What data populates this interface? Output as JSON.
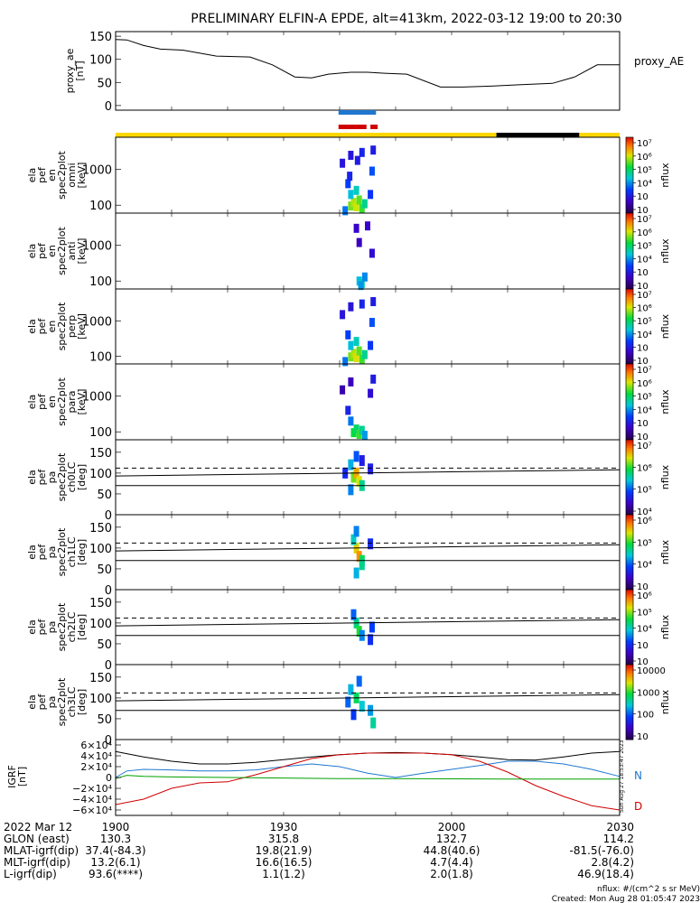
{
  "title": "PRELIMINARY ELFIN-A EPDE, alt=413km, 2022-03-12 19:00 to 20:30",
  "footer": {
    "units": "nflux: #/(cm^2 s sr MeV)",
    "created": "Created: Mon Aug 28 01:05:47 2023"
  },
  "side_stamp": "Sun Aug 27 18:53:47 2023",
  "colors": {
    "dashed": "#000",
    "blue": "#1f77d0",
    "red": "#d00000",
    "green": "#00a000",
    "black": "#000000",
    "bar_yellow": "#ffd700"
  },
  "chart_data": [
    {
      "panel": "proxy_ae",
      "type": "line",
      "ylabel": [
        "proxy_ae",
        "[nT]"
      ],
      "legend": "proxy_AE",
      "yticks": [
        0,
        50,
        100,
        150
      ],
      "ylim": [
        -10,
        160
      ],
      "xlim": [
        0,
        90
      ],
      "series": [
        {
          "name": "proxy_AE",
          "x": [
            0,
            2,
            5,
            8,
            12,
            18,
            24,
            28,
            32,
            35,
            38,
            42,
            45,
            48,
            52,
            58,
            62,
            67,
            72,
            78,
            82,
            86,
            88,
            90
          ],
          "y": [
            143,
            142,
            130,
            122,
            120,
            107,
            105,
            88,
            62,
            60,
            68,
            72,
            72,
            70,
            68,
            40,
            40,
            42,
            45,
            48,
            62,
            88,
            88,
            88
          ]
        }
      ]
    },
    {
      "panel": "status_bars",
      "type": "bar",
      "bars": [
        {
          "name": "science_blue",
          "x0": 39.8,
          "x1": 46.5,
          "color": "#1f77d0"
        },
        {
          "name": "science_red_1",
          "x0": 39.8,
          "x1": 44.8,
          "color": "#d00000"
        },
        {
          "name": "science_red_2",
          "x0": 45.5,
          "x1": 46.8,
          "color": "#d00000"
        },
        {
          "name": "eclipse_yellow_1",
          "x0": 0,
          "x1": 68.0,
          "color": "#ffd700"
        },
        {
          "name": "eclipse_black",
          "x0": 68.0,
          "x1": 82.8,
          "color": "#000000"
        },
        {
          "name": "eclipse_yellow_2",
          "x0": 82.8,
          "x1": 90,
          "color": "#ffd700"
        }
      ]
    },
    {
      "panel": "spec_omni",
      "type": "heatmap",
      "ylabel": [
        "ela",
        "pef",
        "en",
        "spec2plot",
        "omni",
        "[keV]"
      ],
      "ytick_labels": [
        "1000",
        "100"
      ],
      "ytick_values": [
        1000,
        100
      ],
      "ylog": true,
      "ylim": [
        60,
        8000
      ],
      "zlabel": "nflux",
      "zticks": [
        "10⁷",
        "10⁶",
        "10⁵",
        "10⁴",
        "10⁳",
        "10⁲"
      ],
      "zlim": [
        2,
        7
      ],
      "cells": [
        [
          42,
          95,
          5.4
        ],
        [
          42.5,
          120,
          5.6
        ],
        [
          43,
          90,
          5.7
        ],
        [
          43.5,
          140,
          5.3
        ],
        [
          42,
          200,
          4.2
        ],
        [
          43,
          260,
          4.4
        ],
        [
          41.5,
          400,
          3.5
        ],
        [
          44,
          80,
          5.2
        ],
        [
          41,
          70,
          3.8
        ],
        [
          44.5,
          110,
          4.6
        ],
        [
          40.5,
          1500,
          3
        ],
        [
          42,
          2500,
          3
        ],
        [
          44,
          3000,
          3.2
        ],
        [
          45.8,
          900,
          3.6
        ],
        [
          46,
          3500,
          3.1
        ],
        [
          45.5,
          200,
          3.4
        ],
        [
          41.8,
          650,
          3.2
        ],
        [
          43.2,
          1800,
          3.1
        ]
      ]
    },
    {
      "panel": "spec_anti",
      "type": "heatmap",
      "ylabel": [
        "ela",
        "pef",
        "en",
        "spec2plot",
        "anti",
        "[keV]"
      ],
      "ytick_labels": [
        "1000",
        "100"
      ],
      "ytick_values": [
        1000,
        100
      ],
      "ylog": true,
      "ylim": [
        60,
        8000
      ],
      "zlabel": "nflux",
      "zticks": [
        "10⁷",
        "10⁶",
        "10⁵",
        "10⁴",
        "10⁳",
        "10⁲"
      ],
      "zlim": [
        2,
        7
      ],
      "cells": [
        [
          43.5,
          100,
          4.2
        ],
        [
          44,
          85,
          4.5
        ],
        [
          44.5,
          130,
          3.9
        ],
        [
          43.8,
          75,
          4.0
        ],
        [
          43,
          3000,
          2.8
        ],
        [
          45,
          3500,
          2.8
        ],
        [
          43.5,
          1200,
          2.7
        ],
        [
          45.8,
          600,
          2.9
        ]
      ]
    },
    {
      "panel": "spec_perp",
      "type": "heatmap",
      "ylabel": [
        "ela",
        "pef",
        "en",
        "spec2plot",
        "perp",
        "[keV]"
      ],
      "ytick_labels": [
        "1000",
        "100"
      ],
      "ytick_values": [
        1000,
        100
      ],
      "ylog": true,
      "ylim": [
        60,
        8000
      ],
      "zlabel": "nflux",
      "zticks": [
        "10⁷",
        "10⁶",
        "10⁵",
        "10⁴",
        "10⁳",
        "10⁲"
      ],
      "zlim": [
        2,
        7
      ],
      "cells": [
        [
          42,
          95,
          5.4
        ],
        [
          42.5,
          120,
          5.6
        ],
        [
          43,
          90,
          5.8
        ],
        [
          43.5,
          140,
          5.3
        ],
        [
          42,
          200,
          4.2
        ],
        [
          43,
          260,
          4.4
        ],
        [
          41.5,
          400,
          3.5
        ],
        [
          44,
          80,
          5.2
        ],
        [
          41,
          70,
          3.8
        ],
        [
          44.5,
          110,
          4.6
        ],
        [
          40.5,
          1500,
          3
        ],
        [
          42,
          2500,
          3
        ],
        [
          44,
          3000,
          3.2
        ],
        [
          45.8,
          900,
          3.6
        ],
        [
          46,
          3500,
          3.1
        ],
        [
          45.5,
          200,
          3.4
        ]
      ]
    },
    {
      "panel": "spec_para",
      "type": "heatmap",
      "ylabel": [
        "ela",
        "pef",
        "en",
        "spec2plot",
        "para",
        "[keV]"
      ],
      "ytick_labels": [
        "1000",
        "100"
      ],
      "ytick_values": [
        1000,
        100
      ],
      "ylog": true,
      "ylim": [
        60,
        8000
      ],
      "zlabel": "nflux",
      "zticks": [
        "10⁷",
        "10⁶",
        "10⁵",
        "10⁴",
        "10⁳",
        "10⁲"
      ],
      "zlim": [
        2,
        7
      ],
      "cells": [
        [
          42.5,
          95,
          5.0
        ],
        [
          43,
          120,
          4.8
        ],
        [
          43.5,
          85,
          5.2
        ],
        [
          44,
          110,
          4.6
        ],
        [
          42,
          200,
          3.8
        ],
        [
          41.5,
          400,
          3.2
        ],
        [
          44.5,
          80,
          4.0
        ],
        [
          46,
          3000,
          3.1
        ],
        [
          45.5,
          1200,
          2.9
        ],
        [
          42,
          2500,
          2.7
        ],
        [
          40.5,
          1500,
          2.6
        ]
      ]
    },
    {
      "panel": "pa_ch0",
      "type": "heatmap",
      "ylabel": [
        "ela",
        "pef",
        "pa",
        "spec2plot",
        "ch0LC",
        "[deg]"
      ],
      "yticks": [
        0,
        50,
        100,
        150
      ],
      "ylim": [
        0,
        180
      ],
      "zlabel": "nflux",
      "zticks": [
        "10⁷",
        "10⁶",
        "10⁵",
        "10⁴"
      ],
      "zlim": [
        3.5,
        7.5
      ],
      "lines": {
        "dashed_y0": 112,
        "dashed_y1": 112,
        "upper_y0": 93,
        "upper_y1": 108,
        "lower_y0": 70,
        "lower_y1": 70
      },
      "cells": [
        [
          42.5,
          90,
          6.2
        ],
        [
          43,
          100,
          6.8
        ],
        [
          43.5,
          80,
          6.5
        ],
        [
          42,
          120,
          5.2
        ],
        [
          44,
          70,
          5.6
        ],
        [
          41,
          100,
          4.5
        ],
        [
          45.5,
          110,
          4.4
        ],
        [
          43,
          140,
          4.8
        ],
        [
          42,
          60,
          5.0
        ],
        [
          44,
          130,
          4.4
        ]
      ]
    },
    {
      "panel": "pa_ch1",
      "type": "heatmap",
      "ylabel": [
        "ela",
        "pef",
        "pa",
        "spec2plot",
        "ch1LC",
        "[deg]"
      ],
      "yticks": [
        0,
        50,
        100,
        150
      ],
      "ylim": [
        0,
        180
      ],
      "zlabel": "nflux",
      "zticks": [
        "10⁶",
        "10⁵",
        "10⁴",
        "10⁳"
      ],
      "zlim": [
        2.5,
        6.5
      ],
      "lines": {
        "dashed_y0": 112,
        "dashed_y1": 112,
        "upper_y0": 93,
        "upper_y1": 108,
        "lower_y0": 70,
        "lower_y1": 70
      },
      "cells": [
        [
          43,
          100,
          5.6
        ],
        [
          43.5,
          80,
          5.9
        ],
        [
          42.5,
          120,
          4.4
        ],
        [
          44,
          70,
          4.8
        ],
        [
          43,
          140,
          4.0
        ],
        [
          45.5,
          110,
          3.5
        ],
        [
          44,
          60,
          4.6
        ],
        [
          43,
          40,
          4.2
        ]
      ]
    },
    {
      "panel": "pa_ch2",
      "type": "heatmap",
      "ylabel": [
        "ela",
        "pef",
        "pa",
        "spec2plot",
        "ch2LC",
        "[deg]"
      ],
      "yticks": [
        0,
        50,
        100,
        150
      ],
      "ylim": [
        0,
        180
      ],
      "zlabel": "nflux",
      "zticks": [
        "10⁶",
        "10⁵",
        "10⁴",
        "10⁳",
        "10⁲"
      ],
      "zlim": [
        1.5,
        6.5
      ],
      "lines": {
        "dashed_y0": 112,
        "dashed_y1": 112,
        "upper_y0": 93,
        "upper_y1": 108,
        "lower_y0": 70,
        "lower_y1": 70
      },
      "cells": [
        [
          43,
          100,
          4.2
        ],
        [
          43.5,
          80,
          4.6
        ],
        [
          42.5,
          120,
          3.2
        ],
        [
          44,
          70,
          3.4
        ],
        [
          45.8,
          90,
          3.0
        ],
        [
          45.5,
          60,
          2.8
        ]
      ]
    },
    {
      "panel": "pa_ch3",
      "type": "heatmap",
      "ylabel": [
        "ela",
        "pef",
        "pa",
        "spec2plot",
        "ch3LC",
        "[deg]"
      ],
      "yticks": [
        0,
        50,
        100,
        150
      ],
      "ylim": [
        0,
        180
      ],
      "zlabel": "nflux",
      "zticks": [
        "10000",
        "1000",
        "100",
        "10"
      ],
      "zlim": [
        1,
        4.5
      ],
      "lines": {
        "dashed_y0": 112,
        "dashed_y1": 112,
        "upper_y0": 93,
        "upper_y1": 108,
        "lower_y0": 70,
        "lower_y1": 70
      },
      "cells": [
        [
          42,
          120,
          2.5
        ],
        [
          43,
          100,
          3.0
        ],
        [
          44,
          80,
          2.6
        ],
        [
          41.5,
          90,
          2.2
        ],
        [
          45.5,
          70,
          2.4
        ],
        [
          43.5,
          140,
          2.2
        ],
        [
          46,
          40,
          2.8
        ],
        [
          42.5,
          60,
          2.0
        ]
      ]
    },
    {
      "panel": "igrf",
      "type": "line",
      "ylabel": [
        "IGRF",
        "[nT]"
      ],
      "ytick_labels": [
        "6×10⁴",
        "4×10⁴",
        "2×10⁴",
        "0",
        "−2×10⁴",
        "−4×10⁴",
        "−6×10⁴"
      ],
      "ytick_values": [
        60000,
        40000,
        20000,
        0,
        -20000,
        -40000,
        -60000
      ],
      "ylim": [
        -70000,
        70000
      ],
      "legend": [
        "N",
        "D"
      ],
      "series": [
        {
          "name": "black",
          "color": "#000000",
          "x": [
            0,
            5,
            10,
            15,
            20,
            25,
            30,
            35,
            40,
            45,
            50,
            55,
            60,
            65,
            70,
            75,
            80,
            85,
            90
          ],
          "y": [
            48000,
            38000,
            30000,
            25000,
            25000,
            28000,
            33000,
            38000,
            42000,
            45000,
            46000,
            45000,
            42000,
            38000,
            33000,
            32000,
            38000,
            45000,
            48000
          ]
        },
        {
          "name": "N",
          "color": "#1f77d0",
          "x": [
            0,
            2,
            5,
            10,
            15,
            20,
            25,
            30,
            35,
            40,
            45,
            50,
            55,
            60,
            65,
            70,
            75,
            80,
            85,
            90
          ],
          "y": [
            0,
            12000,
            15000,
            14000,
            12000,
            12000,
            14000,
            20000,
            25000,
            20000,
            8000,
            0,
            8000,
            15000,
            22000,
            30000,
            30000,
            25000,
            15000,
            2000
          ]
        },
        {
          "name": "D",
          "color": "#d00000",
          "x": [
            0,
            5,
            10,
            15,
            20,
            25,
            30,
            35,
            40,
            45,
            50,
            55,
            60,
            65,
            70,
            75,
            80,
            85,
            90
          ],
          "y": [
            -50000,
            -40000,
            -20000,
            -10000,
            -8000,
            5000,
            20000,
            35000,
            42000,
            45000,
            45000,
            45000,
            42000,
            30000,
            10000,
            -15000,
            -35000,
            -52000,
            -60000
          ]
        },
        {
          "name": "green",
          "color": "#00a000",
          "x": [
            0,
            2,
            5,
            10,
            20,
            30,
            40,
            50,
            60,
            70,
            80,
            90
          ],
          "y": [
            -2000,
            4000,
            2000,
            1000,
            0,
            -1000,
            -2000,
            -2000,
            -2500,
            -3000,
            -3000,
            -3000
          ]
        }
      ]
    },
    {
      "panel": "time_axis",
      "type": "table",
      "xtick_labels": [
        "1900",
        "1930",
        "2000",
        "2030"
      ],
      "xtick_values": [
        0,
        30,
        60,
        90
      ],
      "rows": [
        {
          "label": "2022 Mar 12",
          "values": [
            "1900",
            "1930",
            "2000",
            "2030"
          ]
        },
        {
          "label": "GLON (east)",
          "values": [
            "130.3",
            "315.8",
            "132.7",
            "114.2"
          ]
        },
        {
          "label": "MLAT-igrf(dip)",
          "values": [
            "37.4(-84.3)",
            "19.8(21.9)",
            "44.8(40.6)",
            "-81.5(-76.0)"
          ]
        },
        {
          "label": "MLT-igrf(dip)",
          "values": [
            "13.2(6.1)",
            "16.6(16.5)",
            "4.7(4.4)",
            "2.8(4.2)"
          ]
        },
        {
          "label": "L-igrf(dip)",
          "values": [
            "93.6(****)",
            "1.1(1.2)",
            "2.0(1.8)",
            "46.9(18.4)"
          ]
        }
      ]
    }
  ]
}
